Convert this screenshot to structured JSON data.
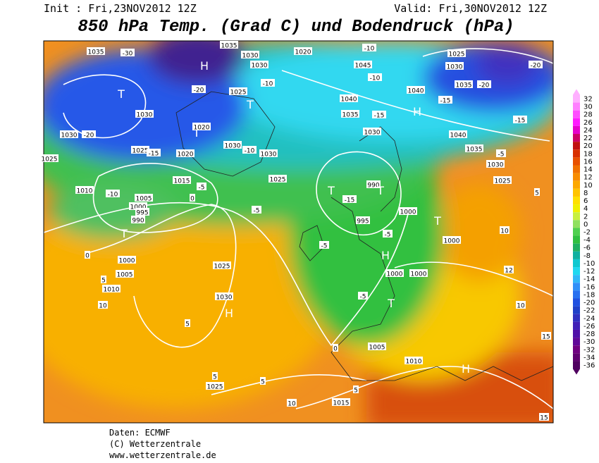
{
  "header": {
    "init": "Init : Fri,23NOV2012 12Z",
    "valid": "Valid: Fri,30NOV2012 12Z",
    "title": "850 hPa Temp. (Grad C) und Bodendruck (hPa)"
  },
  "colorbar": {
    "ticks": [
      32,
      30,
      28,
      26,
      24,
      22,
      20,
      18,
      16,
      14,
      12,
      10,
      8,
      6,
      4,
      2,
      0,
      -2,
      -4,
      -6,
      -8,
      -10,
      -12,
      -14,
      -16,
      -18,
      -20,
      -22,
      -24,
      -26,
      -28,
      -30,
      -32,
      -34,
      -36
    ],
    "colors": [
      "#ffb0ff",
      "#ff80ff",
      "#ff4dff",
      "#ff1aff",
      "#e600cc",
      "#cc0066",
      "#c01010",
      "#d83000",
      "#e85000",
      "#f07000",
      "#f88c00",
      "#fca800",
      "#ffc400",
      "#ffe000",
      "#f0f000",
      "#c8f040",
      "#90e060",
      "#50d050",
      "#30c040",
      "#20b060",
      "#10b0a0",
      "#10c8d0",
      "#20d8f0",
      "#30b8f8",
      "#3090f8",
      "#2870f0",
      "#2050e0",
      "#2040c8",
      "#3030c0",
      "#4020b8",
      "#5010a8",
      "#600898",
      "#700080",
      "#600070",
      "#500060"
    ]
  },
  "map": {
    "labels": [
      "1035",
      "-30",
      "H",
      "1035",
      "1030",
      "1030",
      "1020",
      "1045",
      "-10",
      "1025",
      "1030",
      "-20",
      "T",
      "-20",
      "1025",
      "-10",
      "1040",
      "-10",
      "1035",
      "-20",
      "1040",
      "-15",
      "H",
      "1030",
      "T",
      "1035",
      "-15",
      "-15",
      "1030",
      "-20",
      "T",
      "1020",
      "1030",
      "1040",
      "1025",
      "-15",
      "1020",
      "1030",
      "-10",
      "1030",
      "1025",
      "1035",
      "-5",
      "1030",
      "1015",
      "-5",
      "1025",
      "1010",
      "-10",
      "1005",
      "1000",
      "995",
      "990",
      "T",
      "990",
      "T",
      "1025",
      "-15",
      "995",
      "-5",
      "0",
      "5",
      "T",
      "1000",
      "T",
      "-5",
      "1000",
      "10",
      "0",
      "1000",
      "-5",
      "H",
      "1005",
      "1025",
      "1000",
      "1000",
      "12",
      "5",
      "1010",
      "1030",
      "-5",
      "10",
      "H",
      "T",
      "10",
      "5",
      "0",
      "1005",
      "15",
      "1010",
      "H",
      "5",
      "1025",
      "5",
      "5",
      "10",
      "1015",
      "15"
    ]
  },
  "footer": [
    "Daten: ECMWF",
    "(C) Wetterzentrale",
    "www.wetterzentrale.de"
  ]
}
